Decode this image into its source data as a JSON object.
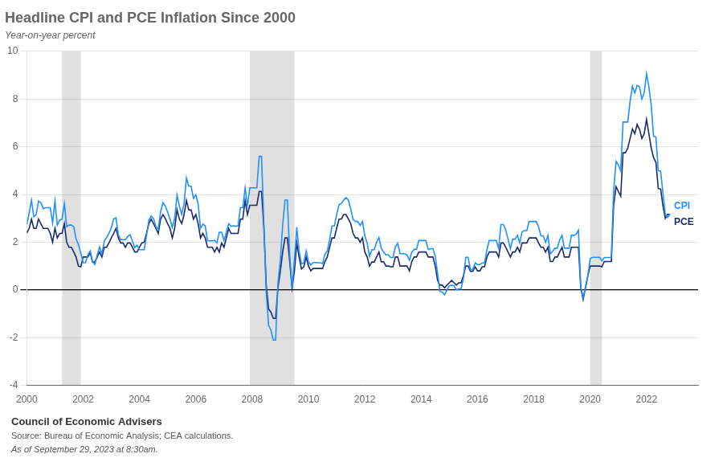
{
  "chart_data": {
    "type": "line",
    "title": "Headline CPI and PCE Inflation Since 2000",
    "subtitle": "Year-on-year percent",
    "annotations": [
      "Council of Economic Advisers",
      "Source: Bureau of Economic Analysis; CEA calculations.",
      "As of September 29, 2023 at 8:30am."
    ],
    "xlim": [
      2000.0,
      2023.83
    ],
    "xticks": [
      2000,
      2002,
      2004,
      2006,
      2008,
      2010,
      2012,
      2014,
      2016,
      2018,
      2020,
      2022
    ],
    "ylim": [
      -4,
      10
    ],
    "yticks": [
      -4,
      -2,
      0,
      2,
      4,
      6,
      8,
      10
    ],
    "grid": "y",
    "recession_bands": [
      [
        2001.25,
        2001.917
      ],
      [
        2007.917,
        2009.5
      ],
      [
        2020.0,
        2020.417
      ]
    ],
    "x": [
      2000,
      2000.0833,
      2000.1667,
      2000.25,
      2000.3333,
      2000.4167,
      2000.5,
      2000.5833,
      2000.6667,
      2000.75,
      2000.8333,
      2000.9167,
      2001,
      2001.0833,
      2001.1667,
      2001.25,
      2001.3333,
      2001.4167,
      2001.5,
      2001.5833,
      2001.6667,
      2001.75,
      2001.8333,
      2001.9167,
      2002,
      2002.0833,
      2002.1667,
      2002.25,
      2002.3333,
      2002.4167,
      2002.5,
      2002.5833,
      2002.6667,
      2002.75,
      2002.8333,
      2002.9167,
      2003,
      2003.0833,
      2003.1667,
      2003.25,
      2003.3333,
      2003.4167,
      2003.5,
      2003.5833,
      2003.6667,
      2003.75,
      2003.8333,
      2003.9167,
      2004,
      2004.0833,
      2004.1667,
      2004.25,
      2004.3333,
      2004.4167,
      2004.5,
      2004.5833,
      2004.6667,
      2004.75,
      2004.8333,
      2004.9167,
      2005,
      2005.0833,
      2005.1667,
      2005.25,
      2005.3333,
      2005.4167,
      2005.5,
      2005.5833,
      2005.6667,
      2005.75,
      2005.8333,
      2005.9167,
      2006,
      2006.0833,
      2006.1667,
      2006.25,
      2006.3333,
      2006.4167,
      2006.5,
      2006.5833,
      2006.6667,
      2006.75,
      2006.8333,
      2006.9167,
      2007,
      2007.0833,
      2007.1667,
      2007.25,
      2007.3333,
      2007.4167,
      2007.5,
      2007.5833,
      2007.6667,
      2007.75,
      2007.8333,
      2007.9167,
      2008,
      2008.0833,
      2008.1667,
      2008.25,
      2008.3333,
      2008.4167,
      2008.5,
      2008.5833,
      2008.6667,
      2008.75,
      2008.8333,
      2008.9167,
      2009,
      2009.0833,
      2009.1667,
      2009.25,
      2009.3333,
      2009.4167,
      2009.5,
      2009.5833,
      2009.6667,
      2009.75,
      2009.8333,
      2009.9167,
      2010,
      2010.0833,
      2010.1667,
      2010.25,
      2010.3333,
      2010.4167,
      2010.5,
      2010.5833,
      2010.6667,
      2010.75,
      2010.8333,
      2010.9167,
      2011,
      2011.0833,
      2011.1667,
      2011.25,
      2011.3333,
      2011.4167,
      2011.5,
      2011.5833,
      2011.6667,
      2011.75,
      2011.8333,
      2011.9167,
      2012,
      2012.0833,
      2012.1667,
      2012.25,
      2012.3333,
      2012.4167,
      2012.5,
      2012.5833,
      2012.6667,
      2012.75,
      2012.8333,
      2012.9167,
      2013,
      2013.0833,
      2013.1667,
      2013.25,
      2013.3333,
      2013.4167,
      2013.5,
      2013.5833,
      2013.6667,
      2013.75,
      2013.8333,
      2013.9167,
      2014,
      2014.0833,
      2014.1667,
      2014.25,
      2014.3333,
      2014.4167,
      2014.5,
      2014.5833,
      2014.6667,
      2014.75,
      2014.8333,
      2014.9167,
      2015,
      2015.0833,
      2015.1667,
      2015.25,
      2015.3333,
      2015.4167,
      2015.5,
      2015.5833,
      2015.6667,
      2015.75,
      2015.8333,
      2015.9167,
      2016,
      2016.0833,
      2016.1667,
      2016.25,
      2016.3333,
      2016.4167,
      2016.5,
      2016.5833,
      2016.6667,
      2016.75,
      2016.8333,
      2016.9167,
      2017,
      2017.0833,
      2017.1667,
      2017.25,
      2017.3333,
      2017.4167,
      2017.5,
      2017.5833,
      2017.6667,
      2017.75,
      2017.8333,
      2017.9167,
      2018,
      2018.0833,
      2018.1667,
      2018.25,
      2018.3333,
      2018.4167,
      2018.5,
      2018.5833,
      2018.6667,
      2018.75,
      2018.8333,
      2018.9167,
      2019,
      2019.0833,
      2019.1667,
      2019.25,
      2019.3333,
      2019.4167,
      2019.5,
      2019.5833,
      2019.6667,
      2019.75,
      2019.8333,
      2019.9167,
      2020,
      2020.0833,
      2020.1667,
      2020.25,
      2020.3333,
      2020.4167,
      2020.5,
      2020.5833,
      2020.6667,
      2020.75,
      2020.8333,
      2020.9167,
      2021,
      2021.0833,
      2021.1667,
      2021.25,
      2021.3333,
      2021.4167,
      2021.5,
      2021.5833,
      2021.6667,
      2021.75,
      2021.8333,
      2021.9167,
      2022,
      2022.0833,
      2022.1667,
      2022.25,
      2022.3333,
      2022.4167,
      2022.5,
      2022.5833,
      2022.6667,
      2022.75,
      2022.8333
    ],
    "series": [
      {
        "name": "CPI",
        "color": "#1E90FF",
        "values": [
          2.74,
          3.22,
          3.76,
          3.07,
          3.16,
          3.73,
          3.66,
          3.41,
          3.45,
          3.45,
          3.45,
          2.81,
          3.73,
          2.72,
          2.92,
          2.97,
          3.62,
          2.65,
          2.72,
          2.72,
          2.65,
          2.13,
          1.9,
          1.55,
          1.14,
          1.14,
          1.47,
          1.64,
          1.18,
          1.07,
          1.46,
          1.8,
          1.51,
          2.04,
          2.2,
          2.38,
          2.6,
          2.98,
          3.02,
          2.32,
          2.11,
          2.11,
          2.11,
          2.24,
          2.32,
          2.04,
          1.77,
          1.88,
          1.69,
          1.69,
          1.69,
          2.27,
          2.93,
          3.1,
          2.99,
          2.65,
          2.54,
          3.28,
          3.66,
          3.52,
          3.26,
          2.97,
          2.62,
          3.01,
          3.98,
          3.51,
          3.17,
          3.63,
          4.69,
          4.35,
          4.35,
          3.84,
          3.99,
          3.6,
          2.58,
          2.76,
          2.69,
          2.06,
          2.06,
          2.06,
          2.08,
          1.97,
          2.42,
          2.42,
          2.08,
          2.42,
          2.78,
          2.67,
          2.69,
          2.67,
          2.69,
          3.45,
          3.45,
          4.28,
          3.54,
          4.28,
          4.28,
          4.28,
          4.28,
          5.6,
          5.6,
          2.73,
          -0.1,
          -1.48,
          -1.69,
          -2.1,
          -2.1,
          0.28,
          1.24,
          2.72,
          3.77,
          3.77,
          1.46,
          0.09,
          1.24,
          2.63,
          1.64,
          1.1,
          1.13,
          1.64,
          1.18,
          1.05,
          1.15,
          1.15,
          1.14,
          1.14,
          1.1,
          1.5,
          1.63,
          2.11,
          2.68,
          2.68,
          3.16,
          3.57,
          3.63,
          3.77,
          3.87,
          3.77,
          3.39,
          2.96,
          2.87,
          2.87,
          2.7,
          2.87,
          2.27,
          1.97,
          1.41,
          1.69,
          1.69,
          2.0,
          2.2,
          1.74,
          1.59,
          1.47,
          1.47,
          1.36,
          1.36,
          1.8,
          1.96,
          1.52,
          1.52,
          1.52,
          1.46,
          1.24,
          1.58,
          1.7,
          1.7,
          2.07,
          2.07,
          2.07,
          2.07,
          1.7,
          1.73,
          1.73,
          1.41,
          0.69,
          -0.07,
          -0.09,
          -0.2,
          0.0,
          0.17,
          0.2,
          0.17,
          0.0,
          0.04,
          0.04,
          0.5,
          1.37,
          1.37,
          0.85,
          0.85,
          1.13,
          1.06,
          1.06,
          1.13,
          1.13,
          1.68,
          2.07,
          2.07,
          2.07,
          2.07,
          1.74,
          2.74,
          2.74,
          2.53,
          2.13,
          1.73,
          2.13,
          2.13,
          2.29,
          1.97,
          2.44,
          2.49,
          2.49,
          2.87,
          2.87,
          2.87,
          2.87,
          2.65,
          2.27,
          2.27,
          1.99,
          2.29,
          1.51,
          1.62,
          1.75,
          1.75,
          2.1,
          2.29,
          1.75,
          1.75,
          1.75,
          2.29,
          2.29,
          2.33,
          2.5,
          0.12,
          -0.33,
          0.12,
          0.6,
          1.31,
          1.37,
          1.37,
          1.37,
          1.37,
          1.22,
          1.36,
          1.36,
          1.36,
          1.36,
          4.16,
          5.39,
          5.25,
          4.99,
          7.04,
          7.04,
          7.04,
          7.91,
          8.54,
          8.26,
          8.58,
          8.52,
          8.0,
          8.26,
          9.06,
          8.52,
          7.75,
          6.45,
          6.4,
          5.0,
          4.98,
          4.05,
          3.18,
          3.04,
          3.17
        ]
      },
      {
        "name": "PCE",
        "color": "#1B2A6B",
        "values": [
          2.38,
          2.58,
          2.97,
          2.58,
          2.58,
          2.97,
          2.78,
          2.58,
          2.58,
          2.58,
          2.37,
          2.0,
          2.58,
          2.18,
          2.37,
          2.37,
          2.78,
          2.0,
          1.79,
          1.79,
          1.59,
          1.38,
          1.0,
          0.97,
          1.38,
          1.38,
          1.38,
          1.57,
          1.17,
          1.17,
          1.38,
          1.59,
          1.38,
          1.79,
          1.79,
          1.97,
          2.18,
          2.37,
          2.58,
          2.18,
          1.97,
          1.97,
          1.79,
          1.97,
          1.97,
          1.79,
          1.59,
          1.59,
          1.79,
          1.97,
          2.0,
          2.37,
          2.78,
          2.97,
          2.78,
          2.58,
          2.37,
          2.97,
          3.16,
          3.0,
          2.78,
          2.58,
          2.18,
          2.58,
          3.37,
          2.97,
          2.78,
          3.16,
          3.75,
          3.35,
          3.35,
          2.97,
          3.16,
          2.78,
          2.18,
          2.37,
          2.18,
          1.79,
          1.79,
          1.79,
          1.59,
          1.79,
          1.59,
          1.97,
          1.79,
          2.18,
          2.58,
          2.37,
          2.37,
          2.37,
          2.37,
          2.97,
          2.97,
          3.75,
          3.16,
          3.55,
          3.55,
          3.55,
          3.55,
          4.13,
          4.13,
          2.58,
          0.2,
          -0.8,
          -0.93,
          -1.19,
          -1.19,
          0.09,
          0.78,
          1.59,
          2.18,
          2.18,
          1.19,
          0.09,
          0.78,
          1.97,
          1.38,
          0.88,
          0.97,
          1.38,
          1.0,
          0.8,
          0.9,
          0.9,
          0.9,
          0.9,
          0.9,
          1.19,
          1.38,
          1.79,
          2.18,
          2.18,
          2.58,
          2.97,
          2.97,
          3.16,
          3.16,
          2.97,
          2.78,
          2.37,
          2.18,
          2.18,
          2.0,
          2.18,
          1.59,
          1.38,
          1.0,
          1.17,
          1.17,
          1.38,
          1.59,
          1.17,
          1.19,
          1.0,
          1.0,
          0.97,
          0.97,
          1.38,
          1.38,
          1.0,
          1.0,
          1.0,
          1.0,
          0.8,
          1.19,
          1.38,
          1.38,
          1.59,
          1.59,
          1.59,
          1.59,
          1.38,
          1.38,
          1.38,
          1.0,
          0.4,
          0.2,
          0.2,
          0.09,
          0.2,
          0.3,
          0.4,
          0.3,
          0.2,
          0.3,
          0.3,
          0.6,
          1.0,
          1.0,
          0.78,
          0.78,
          0.97,
          0.8,
          0.8,
          0.97,
          0.97,
          1.38,
          1.59,
          1.59,
          1.59,
          1.59,
          1.38,
          1.97,
          1.97,
          1.79,
          1.59,
          1.38,
          1.59,
          1.59,
          1.79,
          1.59,
          1.97,
          1.97,
          1.97,
          2.18,
          2.18,
          2.18,
          2.18,
          1.97,
          1.79,
          1.79,
          1.59,
          1.79,
          1.19,
          1.19,
          1.38,
          1.38,
          1.59,
          1.79,
          1.38,
          1.38,
          1.38,
          1.79,
          1.79,
          1.79,
          1.79,
          0.09,
          -0.4,
          0.09,
          0.6,
          1.0,
          1.0,
          1.0,
          1.0,
          1.0,
          0.97,
          1.19,
          1.19,
          1.19,
          1.19,
          3.55,
          4.33,
          4.13,
          3.93,
          5.75,
          5.75,
          5.95,
          6.35,
          6.75,
          6.55,
          6.94,
          6.74,
          6.35,
          6.55,
          7.15,
          6.55,
          5.95,
          5.55,
          5.35,
          4.25,
          4.23,
          3.53,
          3.0,
          3.17,
          3.17
        ]
      }
    ]
  }
}
